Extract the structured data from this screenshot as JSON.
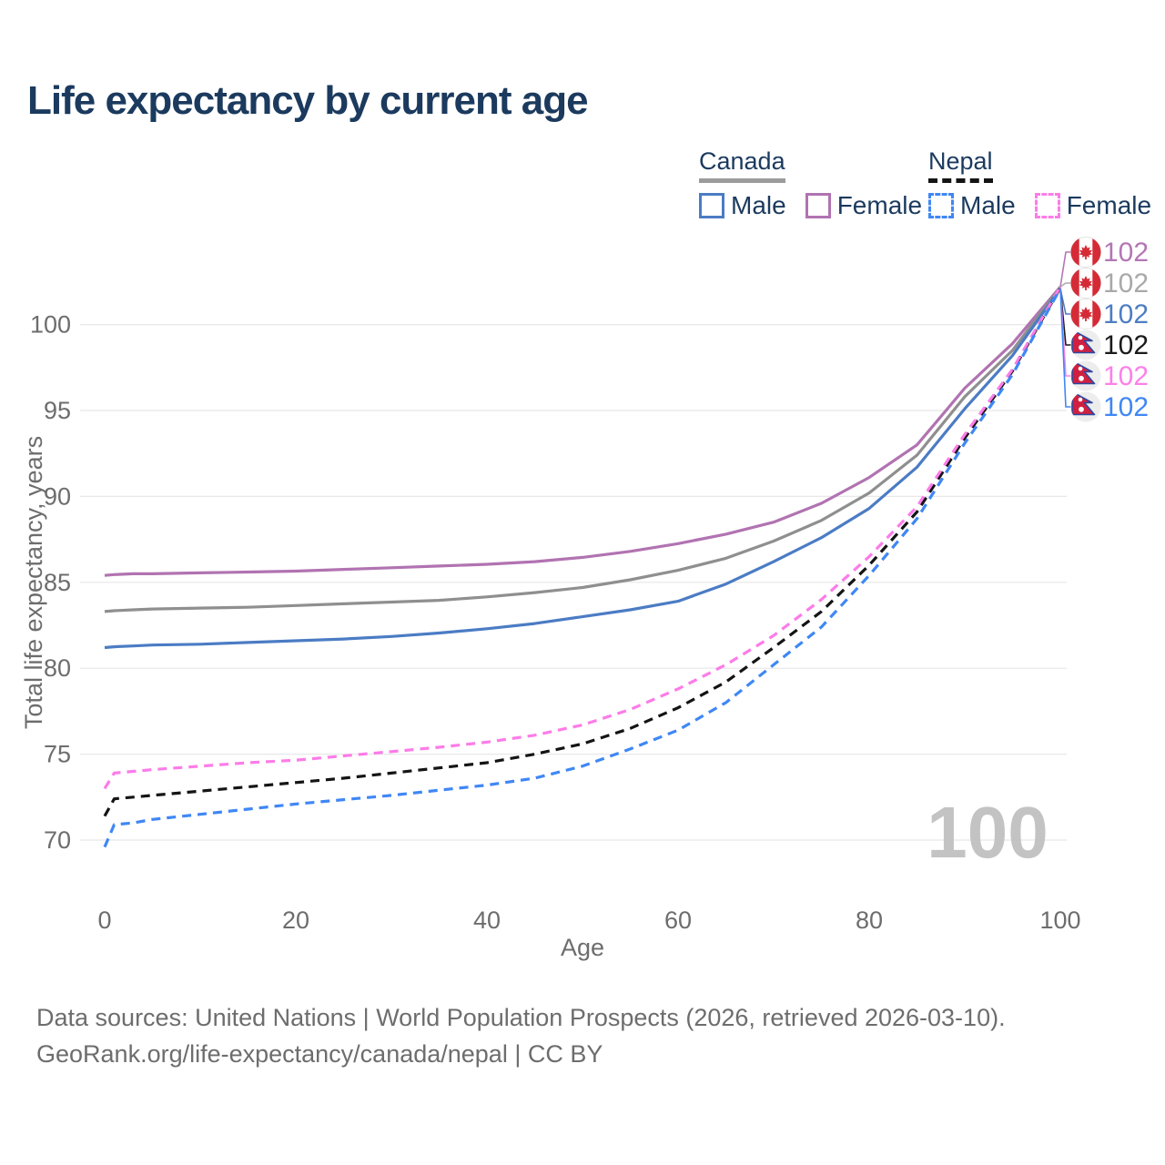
{
  "title": "Life expectancy by current age",
  "watermark": "100",
  "colors": {
    "title_text": "#1b3a5e",
    "axis_text": "#6d6d6d",
    "gridline": "#e7e7e7",
    "watermark": "#c3c3c3",
    "canada_underline": "#9b9b9b",
    "nepal_underline": "#141414"
  },
  "legend": {
    "groups": [
      {
        "name": "Canada",
        "line_style": "solid",
        "underline_color": "#9b9b9b",
        "items": [
          {
            "label": "Male",
            "color": "#4b7cc4",
            "dashed": false
          },
          {
            "label": "Female",
            "color": "#b173b1",
            "dashed": false
          }
        ]
      },
      {
        "name": "Nepal",
        "line_style": "dashed",
        "underline_color": "#141414",
        "items": [
          {
            "label": "Male",
            "color": "#3f87f5",
            "dashed": true
          },
          {
            "label": "Female",
            "color": "#fc7ce8",
            "dashed": true
          }
        ]
      }
    ]
  },
  "footer": {
    "line1": "Data sources: United Nations | World Population Prospects (2026, retrieved 2026-03-10).",
    "line2": "GeoRank.org/life-expectancy/canada/nepal | CC BY"
  },
  "chart_data": {
    "type": "line",
    "title": "Life expectancy by current age",
    "xlabel": "Age",
    "ylabel": "Total life expectancy, years",
    "xlim": [
      0,
      100
    ],
    "ylim": [
      68.5,
      103.5
    ],
    "x_ticks": [
      0,
      20,
      40,
      60,
      80,
      100
    ],
    "y_ticks": [
      70,
      75,
      80,
      85,
      90,
      95,
      100
    ],
    "grid": "horizontal",
    "legend_position": "top-right",
    "hover_age_indicator": "100",
    "x": [
      0,
      1,
      3,
      5,
      10,
      15,
      20,
      25,
      30,
      35,
      40,
      45,
      50,
      55,
      60,
      65,
      70,
      75,
      80,
      85,
      90,
      95,
      100
    ],
    "series": [
      {
        "id": "canada-female",
        "name": "Canada — Female",
        "country": "Canada",
        "sex": "Female",
        "flag": "canada",
        "color": "#b173b1",
        "label_color": "#b476b4",
        "dash": "solid",
        "end_label": "102",
        "values": [
          85.4,
          85.45,
          85.5,
          85.5,
          85.55,
          85.6,
          85.65,
          85.75,
          85.85,
          85.95,
          86.05,
          86.2,
          86.45,
          86.8,
          87.25,
          87.8,
          88.5,
          89.6,
          91.1,
          93.0,
          96.3,
          98.9,
          102.2
        ]
      },
      {
        "id": "canada-total",
        "name": "Canada — Both sexes",
        "country": "Canada",
        "sex": "Both",
        "flag": "canada",
        "color": "#8f8f8f",
        "label_color": "#a9a9a9",
        "dash": "solid",
        "end_label": "102",
        "values": [
          83.3,
          83.35,
          83.4,
          83.45,
          83.5,
          83.55,
          83.65,
          83.75,
          83.85,
          83.95,
          84.15,
          84.4,
          84.7,
          85.15,
          85.7,
          86.4,
          87.4,
          88.6,
          90.2,
          92.4,
          95.8,
          98.5,
          102.2
        ]
      },
      {
        "id": "canada-male",
        "name": "Canada — Male",
        "country": "Canada",
        "sex": "Male",
        "flag": "canada",
        "color": "#4b7cc4",
        "label_color": "#4d7dc2",
        "dash": "solid",
        "end_label": "102",
        "values": [
          81.2,
          81.25,
          81.3,
          81.35,
          81.4,
          81.5,
          81.6,
          81.7,
          81.85,
          82.05,
          82.3,
          82.6,
          83.0,
          83.4,
          83.9,
          84.9,
          86.2,
          87.6,
          89.3,
          91.7,
          95.1,
          98.2,
          102.1
        ]
      },
      {
        "id": "nepal-total",
        "name": "Nepal — Both sexes",
        "country": "Nepal",
        "sex": "Both",
        "flag": "nepal",
        "color": "#141414",
        "label_color": "#1a1a1a",
        "dash": "dashed",
        "end_label": "102",
        "values": [
          71.4,
          72.4,
          72.5,
          72.6,
          72.85,
          73.1,
          73.35,
          73.6,
          73.9,
          74.2,
          74.5,
          75.0,
          75.6,
          76.5,
          77.7,
          79.2,
          81.2,
          83.3,
          86.0,
          89.1,
          93.4,
          97.3,
          102.15
        ]
      },
      {
        "id": "nepal-female",
        "name": "Nepal — Female",
        "country": "Nepal",
        "sex": "Female",
        "flag": "nepal",
        "color": "#fc7ce8",
        "label_color": "#fc80e8",
        "dash": "dashed",
        "end_label": "102",
        "values": [
          73.0,
          73.9,
          74.0,
          74.1,
          74.3,
          74.5,
          74.65,
          74.9,
          75.15,
          75.4,
          75.7,
          76.1,
          76.7,
          77.6,
          78.8,
          80.2,
          81.9,
          84.0,
          86.5,
          89.4,
          93.6,
          97.4,
          102.2
        ]
      },
      {
        "id": "nepal-male",
        "name": "Nepal — Male",
        "country": "Nepal",
        "sex": "Male",
        "flag": "nepal",
        "color": "#3f87f5",
        "label_color": "#3f87f5",
        "dash": "dashed",
        "end_label": "102",
        "values": [
          69.6,
          70.9,
          71.0,
          71.2,
          71.5,
          71.8,
          72.1,
          72.35,
          72.6,
          72.9,
          73.2,
          73.6,
          74.3,
          75.3,
          76.4,
          78.0,
          80.2,
          82.4,
          85.4,
          88.7,
          93.1,
          97.1,
          102.1
        ]
      }
    ]
  }
}
